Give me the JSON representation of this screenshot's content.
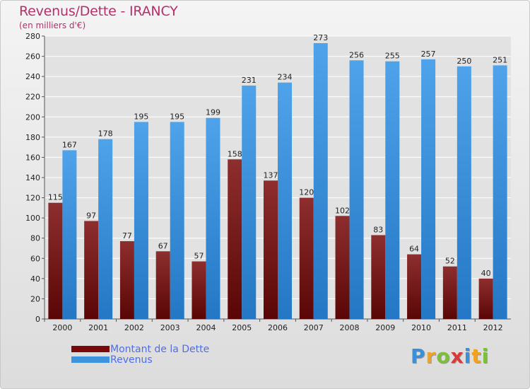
{
  "header": {
    "title": "Revenus/Dette - IRANCY",
    "subtitle": "(en milliers d'€)"
  },
  "legend": {
    "items": [
      {
        "label": "Montant de la Dette",
        "color": "#7a0a0a"
      },
      {
        "label": "Revenus",
        "color": "#3d93dc"
      }
    ]
  },
  "logo": {
    "text": "Proxiti",
    "letters": [
      {
        "ch": "P",
        "color": "#3a8fd8"
      },
      {
        "ch": "r",
        "color": "#f1a31f"
      },
      {
        "ch": "o",
        "color": "#7bbf3a"
      },
      {
        "ch": "x",
        "color": "#d83a3a"
      },
      {
        "ch": "i",
        "color": "#3a8fd8"
      },
      {
        "ch": "t",
        "color": "#f1a31f"
      },
      {
        "ch": "i",
        "color": "#7bbf3a"
      }
    ]
  },
  "colors": {
    "axis_text": "#222222",
    "grid": "#ffffff",
    "dette_top": "#8e2e2e",
    "dette_bottom": "#5a0606",
    "revenus_top": "#4ea3ea",
    "revenus_bottom": "#2377c4"
  },
  "chart_data": {
    "type": "bar",
    "title": "Revenus/Dette - IRANCY",
    "subtitle": "(en milliers d'€)",
    "categories": [
      "2000",
      "2001",
      "2002",
      "2003",
      "2004",
      "2005",
      "2006",
      "2007",
      "2008",
      "2009",
      "2010",
      "2011",
      "2012"
    ],
    "series": [
      {
        "name": "Montant de la Dette",
        "values": [
          115,
          97,
          77,
          67,
          57,
          158,
          137,
          120,
          102,
          83,
          64,
          52,
          40
        ]
      },
      {
        "name": "Revenus",
        "values": [
          167,
          178,
          195,
          195,
          199,
          231,
          234,
          273,
          256,
          255,
          257,
          250,
          251
        ]
      }
    ],
    "ylim": [
      0,
      280
    ],
    "ytick_step": 20,
    "grid": true,
    "data_labels": true,
    "legend_position": "bottom-left"
  }
}
